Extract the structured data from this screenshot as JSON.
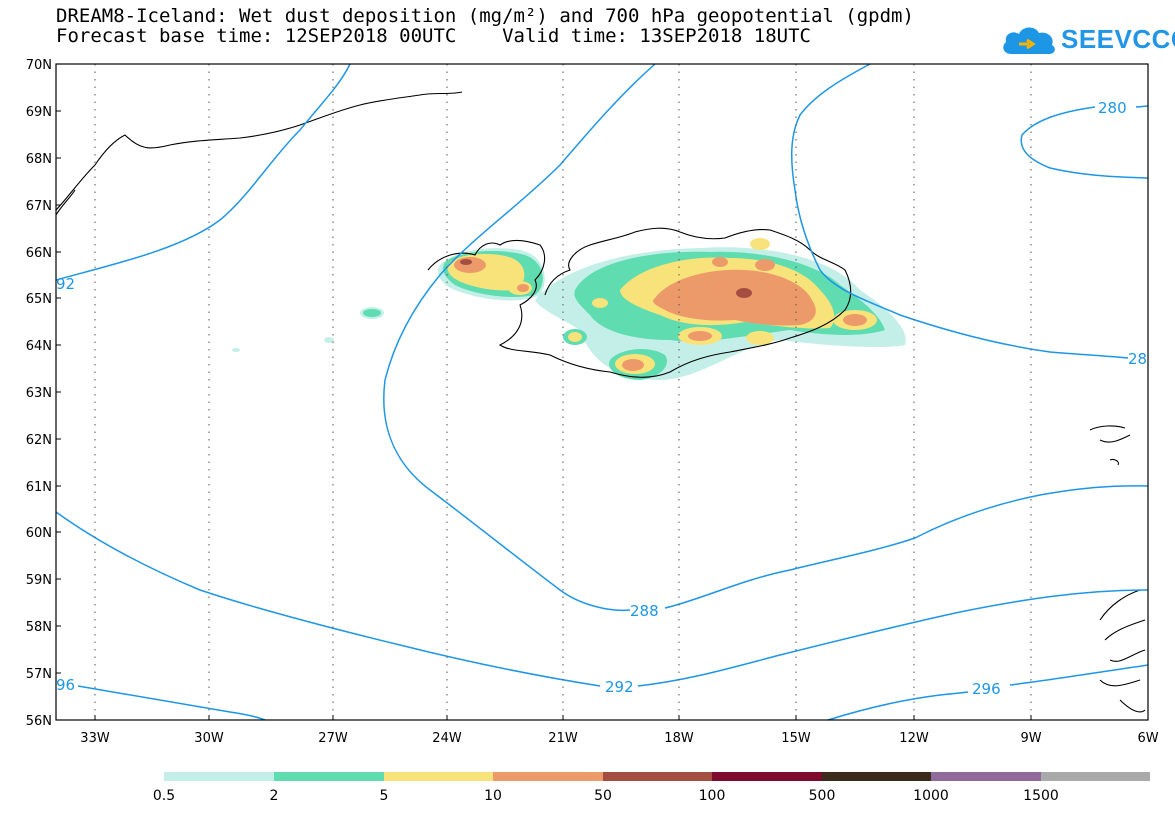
{
  "title": {
    "line1": "DREAM8-Iceland: Wet dust deposition (mg/m²) and 700 hPa geopotential (gpdm)",
    "line2": "Forecast base time: 12SEP2018 00UTC    Valid time: 13SEP2018 18UTC"
  },
  "logo": {
    "text": "SEEVCCC",
    "icon": "cloud-icon",
    "color": "#1e96e6"
  },
  "map": {
    "lon_range": [
      -34.5,
      -6
    ],
    "lat_range": [
      56,
      70
    ],
    "lat_ticks": [
      "70N",
      "69N",
      "68N",
      "67N",
      "66N",
      "65N",
      "64N",
      "63N",
      "62N",
      "61N",
      "60N",
      "59N",
      "58N",
      "57N",
      "56N"
    ],
    "lon_ticks": [
      "33W",
      "30W",
      "27W",
      "24W",
      "21W",
      "18W",
      "15W",
      "12W",
      "9W",
      "6W"
    ],
    "gridlines": "dotted",
    "contour_color": "#1e96e6",
    "contour_labels": [
      "280",
      "288",
      "292",
      "296",
      "92",
      "96",
      "28"
    ]
  },
  "legend": {
    "labels": [
      "0.5",
      "2",
      "5",
      "10",
      "50",
      "100",
      "500",
      "1000",
      "1500"
    ],
    "colors": [
      "#c4efe9",
      "#5fdcb0",
      "#f8e27a",
      "#ed9a6a",
      "#a44e42",
      "#7e0b2e",
      "#3c2a1a",
      "#8e6b9a",
      "#a9a9a9"
    ]
  }
}
